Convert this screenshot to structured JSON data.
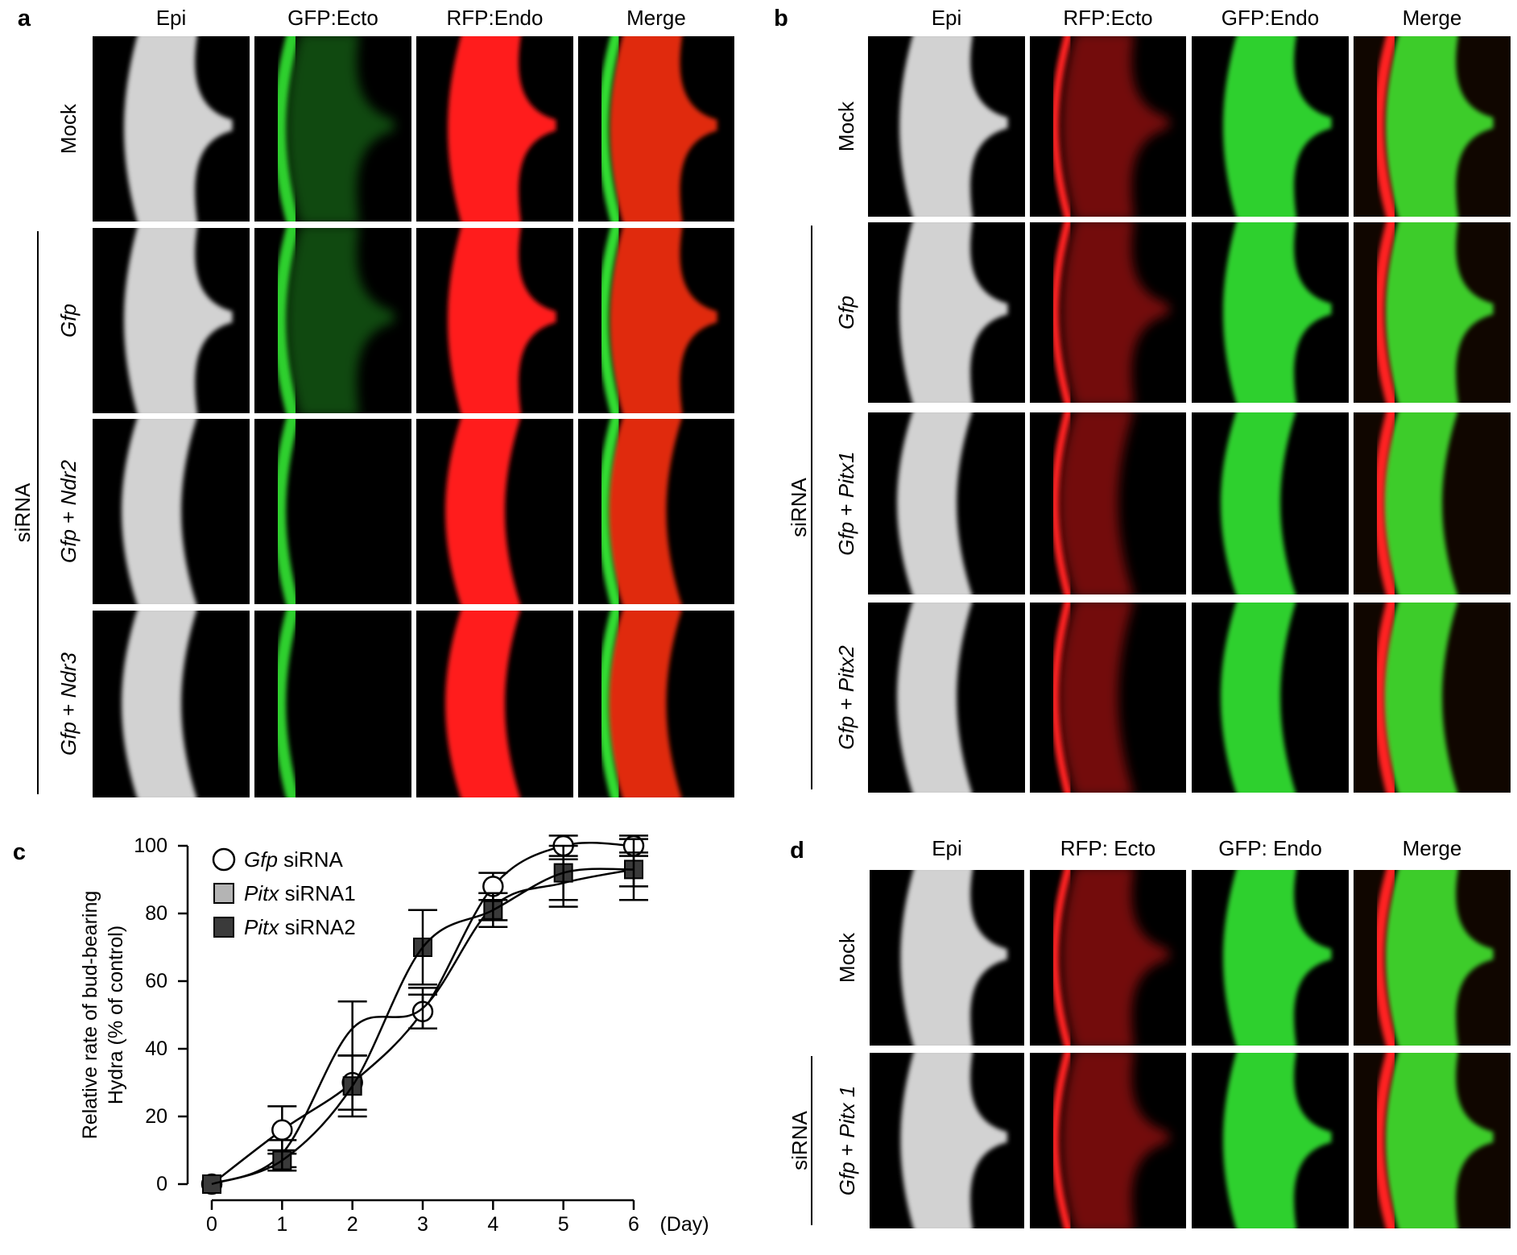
{
  "panels": [
    {
      "letter": "a",
      "columns": [
        "Epi",
        "GFP:Ecto",
        "RFP:Endo",
        "Merge"
      ],
      "column_colors": [
        "#d2d2d2",
        "#2fd02f",
        "#ff1a1a",
        "merge-rg"
      ],
      "group_label": "siRNA",
      "rows": [
        {
          "label": [
            {
              "t": "Mock",
              "i": false
            }
          ],
          "bud": true
        },
        {
          "label": [
            {
              "t": "Gfp",
              "i": true
            }
          ],
          "bud": true
        },
        {
          "label": [
            {
              "t": "Gfp",
              "i": true
            },
            {
              "t": " + ",
              "i": false
            },
            {
              "t": "Ndr2",
              "i": true
            }
          ],
          "bud": false
        },
        {
          "label": [
            {
              "t": "Gfp",
              "i": true
            },
            {
              "t": " + ",
              "i": false
            },
            {
              "t": "Ndr3",
              "i": true
            }
          ],
          "bud": false
        }
      ]
    },
    {
      "letter": "b",
      "columns": [
        "Epi",
        "RFP:Ecto",
        "GFP:Endo",
        "Merge"
      ],
      "column_colors": [
        "#d2d2d2",
        "#ff1a1a",
        "#2fd02f",
        "merge-gr"
      ],
      "group_label": "siRNA",
      "rows": [
        {
          "label": [
            {
              "t": "Mock",
              "i": false
            }
          ],
          "bud": true
        },
        {
          "label": [
            {
              "t": "Gfp",
              "i": true
            }
          ],
          "bud": true
        },
        {
          "label": [
            {
              "t": "Gfp",
              "i": true
            },
            {
              "t": " + ",
              "i": false
            },
            {
              "t": "Pitx1",
              "i": true
            }
          ],
          "bud": false
        },
        {
          "label": [
            {
              "t": "Gfp",
              "i": true
            },
            {
              "t": " + ",
              "i": false
            },
            {
              "t": "Pitx2",
              "i": true
            }
          ],
          "bud": false
        }
      ]
    },
    {
      "letter": "d",
      "columns": [
        "Epi",
        "RFP: Ecto",
        "GFP: Endo",
        "Merge"
      ],
      "column_colors": [
        "#d2d2d2",
        "#ff1a1a",
        "#2fd02f",
        "merge-gr"
      ],
      "group_label": "siRNA",
      "rows": [
        {
          "label": [
            {
              "t": "Mock",
              "i": false
            }
          ],
          "bud": true
        },
        {
          "label": [
            {
              "t": "Gfp",
              "i": true
            },
            {
              "t": " + ",
              "i": false
            },
            {
              "t": "Pitx 1",
              "i": true
            }
          ],
          "bud": true
        }
      ]
    }
  ],
  "chart_panel_letter": "c",
  "chart_data": {
    "type": "line",
    "x": [
      0,
      1,
      2,
      3,
      4,
      5,
      6
    ],
    "xlabel": "(Day)",
    "ylabel_lines": [
      "Relative rate of bud-bearing",
      "Hydra (% of control)"
    ],
    "ylim": [
      0,
      100
    ],
    "yticks": [
      0,
      20,
      40,
      60,
      80,
      100
    ],
    "xticks": [
      0,
      1,
      2,
      3,
      4,
      5,
      6
    ],
    "grid": false,
    "legend_position": "top-left",
    "series": [
      {
        "name_italic": "Gfp",
        "name_rest": " siRNA",
        "marker": "circle",
        "fill": "#ffffff",
        "values": [
          0,
          16,
          30,
          51,
          88,
          100,
          100
        ],
        "errors": [
          0,
          7,
          8,
          5,
          4,
          3,
          3
        ]
      },
      {
        "name_italic": "Pitx",
        "name_rest": " siRNA1",
        "marker": "square",
        "fill": "#b4b4b4",
        "values": [
          0,
          9,
          46,
          52,
          82,
          89,
          93
        ],
        "errors": [
          0,
          4,
          8,
          6,
          4,
          7,
          9
        ]
      },
      {
        "name_italic": "Pitx",
        "name_rest": " siRNA2",
        "marker": "square",
        "fill": "#3a3a3a",
        "values": [
          0,
          7,
          29,
          70,
          81,
          92,
          93
        ],
        "errors": [
          0,
          3,
          9,
          11,
          5,
          8,
          5
        ]
      }
    ]
  }
}
